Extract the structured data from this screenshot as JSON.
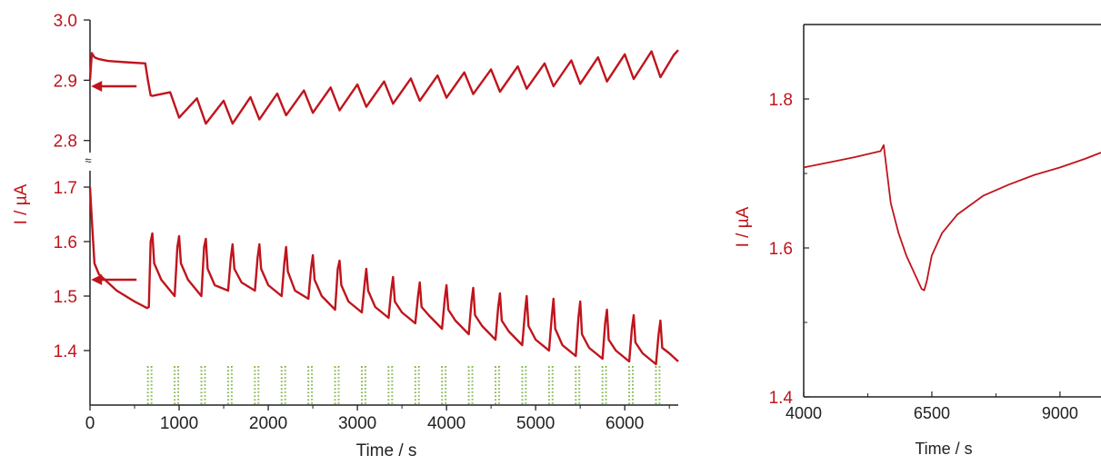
{
  "chart_data": [
    {
      "type": "line",
      "panel": "left",
      "xlabel": "Time / s",
      "ylabel": "I / µA",
      "xlim": [
        0,
        6600
      ],
      "x_ticks": [
        0,
        1000,
        2000,
        3000,
        4000,
        5000,
        6000
      ],
      "y_upper_ticks": [
        "3.0",
        "2.9",
        "2.8"
      ],
      "y_lower_ticks": [
        "1.7",
        "1.6",
        "1.5",
        "1.4"
      ],
      "ylim_upper": [
        2.78,
        3.0
      ],
      "ylim_lower": [
        1.3,
        1.73
      ],
      "axis_break_symbol": "≈",
      "grid": false,
      "series": [
        {
          "segment": "upper",
          "color": "#c0141c",
          "x": [
            0,
            20,
            50,
            100,
            200,
            400,
            620,
            650,
            680,
            700,
            900,
            1000,
            1200,
            1300,
            1500,
            1600,
            1800,
            1900,
            2100,
            2200,
            2400,
            2500,
            2700,
            2800,
            3000,
            3100,
            3300,
            3400,
            3600,
            3700,
            3900,
            4000,
            4200,
            4300,
            4500,
            4600,
            4800,
            4900,
            5100,
            5200,
            5400,
            5500,
            5700,
            5800,
            6000,
            6100,
            6300,
            6400,
            6550,
            6600
          ],
          "y": [
            2.9,
            2.945,
            2.938,
            2.935,
            2.932,
            2.93,
            2.928,
            2.9,
            2.875,
            2.874,
            2.88,
            2.838,
            2.87,
            2.828,
            2.866,
            2.828,
            2.872,
            2.835,
            2.878,
            2.842,
            2.883,
            2.846,
            2.888,
            2.85,
            2.893,
            2.856,
            2.898,
            2.861,
            2.903,
            2.866,
            2.908,
            2.871,
            2.913,
            2.877,
            2.918,
            2.881,
            2.923,
            2.886,
            2.928,
            2.89,
            2.933,
            2.894,
            2.938,
            2.898,
            2.943,
            2.902,
            2.948,
            2.905,
            2.942,
            2.95
          ]
        },
        {
          "segment": "lower",
          "color": "#c0141c",
          "x": [
            0,
            20,
            50,
            100,
            200,
            300,
            500,
            640,
            660,
            680,
            700,
            720,
            800,
            950,
            980,
            1000,
            1020,
            1100,
            1250,
            1280,
            1300,
            1320,
            1400,
            1550,
            1580,
            1600,
            1620,
            1700,
            1850,
            1880,
            1900,
            1920,
            2000,
            2150,
            2180,
            2200,
            2220,
            2300,
            2450,
            2480,
            2500,
            2520,
            2600,
            2750,
            2780,
            2800,
            2820,
            2900,
            3050,
            3080,
            3100,
            3120,
            3200,
            3350,
            3380,
            3400,
            3420,
            3500,
            3650,
            3680,
            3700,
            3720,
            3800,
            3950,
            3980,
            4000,
            4020,
            4100,
            4250,
            4280,
            4300,
            4320,
            4400,
            4550,
            4580,
            4600,
            4620,
            4700,
            4850,
            4880,
            4900,
            4920,
            5000,
            5150,
            5180,
            5200,
            5220,
            5300,
            5450,
            5480,
            5500,
            5520,
            5600,
            5750,
            5780,
            5800,
            5820,
            5900,
            6050,
            6080,
            6100,
            6120,
            6200,
            6350,
            6380,
            6400,
            6420,
            6500,
            6600
          ],
          "y": [
            1.7,
            1.64,
            1.56,
            1.54,
            1.525,
            1.51,
            1.49,
            1.478,
            1.48,
            1.6,
            1.615,
            1.56,
            1.53,
            1.5,
            1.59,
            1.61,
            1.56,
            1.53,
            1.5,
            1.59,
            1.605,
            1.55,
            1.52,
            1.51,
            1.57,
            1.595,
            1.55,
            1.525,
            1.51,
            1.57,
            1.595,
            1.55,
            1.52,
            1.5,
            1.56,
            1.59,
            1.545,
            1.51,
            1.495,
            1.55,
            1.575,
            1.53,
            1.5,
            1.475,
            1.55,
            1.565,
            1.52,
            1.49,
            1.47,
            1.52,
            1.55,
            1.51,
            1.48,
            1.46,
            1.51,
            1.535,
            1.49,
            1.47,
            1.45,
            1.5,
            1.525,
            1.48,
            1.465,
            1.44,
            1.495,
            1.52,
            1.475,
            1.455,
            1.43,
            1.49,
            1.515,
            1.465,
            1.445,
            1.42,
            1.48,
            1.505,
            1.455,
            1.435,
            1.41,
            1.47,
            1.5,
            1.445,
            1.42,
            1.4,
            1.46,
            1.495,
            1.44,
            1.41,
            1.39,
            1.46,
            1.49,
            1.43,
            1.405,
            1.385,
            1.45,
            1.475,
            1.42,
            1.4,
            1.38,
            1.44,
            1.465,
            1.415,
            1.395,
            1.375,
            1.43,
            1.455,
            1.405,
            1.395,
            1.38
          ]
        }
      ],
      "arrows": [
        {
          "panel_segment": "upper",
          "x": 400,
          "y": 2.89,
          "points_to": "left-axis"
        },
        {
          "panel_segment": "lower",
          "x": 400,
          "y": 1.53,
          "points_to": "left-axis"
        }
      ],
      "light_pulses": {
        "color": "#7cb342",
        "starts": [
          650,
          950,
          1250,
          1550,
          1850,
          2150,
          2450,
          2750,
          3050,
          3350,
          3650,
          3950,
          4250,
          4550,
          4850,
          5150,
          5450,
          5750,
          6050,
          6350
        ],
        "duration": 40
      }
    },
    {
      "type": "line",
      "panel": "right",
      "xlabel": "Time / s",
      "ylabel": "I / µA",
      "xlim": [
        4000,
        9800
      ],
      "ylim": [
        1.4,
        1.9
      ],
      "x_ticks": [
        "4000",
        "6500",
        "9000"
      ],
      "y_ticks": [
        "1.8",
        "1.6",
        "1.4"
      ],
      "grid": false,
      "series": [
        {
          "color": "#c0141c",
          "x": [
            4000,
            4500,
            5000,
            5500,
            5560,
            5700,
            5850,
            6000,
            6200,
            6300,
            6350,
            6400,
            6500,
            6700,
            7000,
            7500,
            8000,
            8500,
            9000,
            9500,
            9800
          ],
          "y": [
            1.708,
            1.715,
            1.722,
            1.73,
            1.738,
            1.66,
            1.62,
            1.59,
            1.56,
            1.545,
            1.543,
            1.555,
            1.59,
            1.62,
            1.645,
            1.67,
            1.685,
            1.698,
            1.708,
            1.72,
            1.728
          ]
        }
      ]
    }
  ]
}
